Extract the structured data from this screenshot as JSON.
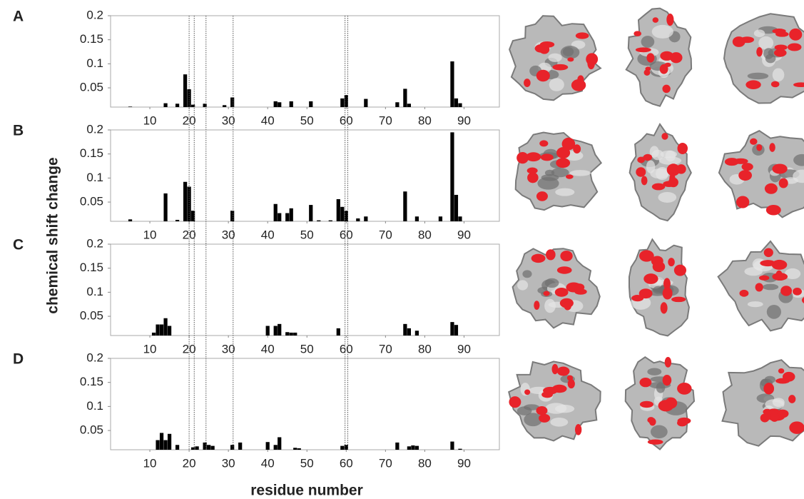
{
  "y_label": "chemical shift change",
  "x_label": "residue number",
  "marker_residues": [
    20,
    21.3,
    24.3,
    31.2,
    59.7,
    60.4
  ],
  "chart_data": [
    {
      "type": "bar",
      "panel_label": "A",
      "color": "#000000",
      "x": [
        5,
        14,
        17,
        19,
        20,
        21,
        24,
        29,
        31,
        42,
        43,
        46,
        51,
        59,
        60,
        65,
        73,
        75,
        76,
        87,
        88,
        89
      ],
      "values": [
        0.011,
        0.018,
        0.017,
        0.078,
        0.047,
        0.015,
        0.017,
        0.014,
        0.03,
        0.022,
        0.02,
        0.022,
        0.022,
        0.028,
        0.035,
        0.027,
        0.02,
        0.048,
        0.017,
        0.105,
        0.028,
        0.018
      ],
      "xlim": [
        0,
        99
      ],
      "ylim": [
        0.01,
        0.2
      ],
      "xticks": [
        10,
        20,
        30,
        40,
        50,
        60,
        70,
        80,
        90
      ],
      "yticks": [
        0.05,
        0.1,
        0.15,
        0.2
      ]
    },
    {
      "type": "bar",
      "panel_label": "B",
      "color": "#000000",
      "x": [
        5,
        14,
        17,
        19,
        20,
        21,
        31,
        42,
        43,
        45,
        46,
        51,
        53,
        56,
        58,
        59,
        60,
        63,
        65,
        75,
        78,
        84,
        87,
        88,
        89
      ],
      "values": [
        0.014,
        0.068,
        0.013,
        0.092,
        0.082,
        0.032,
        0.032,
        0.046,
        0.027,
        0.027,
        0.037,
        0.044,
        0.012,
        0.012,
        0.056,
        0.04,
        0.032,
        0.016,
        0.02,
        0.072,
        0.02,
        0.02,
        0.195,
        0.065,
        0.02
      ],
      "xlim": [
        0,
        99
      ],
      "ylim": [
        0.01,
        0.2
      ],
      "xticks": [
        10,
        20,
        30,
        40,
        50,
        60,
        70,
        80,
        90
      ],
      "yticks": [
        0.05,
        0.1,
        0.15,
        0.2
      ]
    },
    {
      "type": "bar",
      "panel_label": "C",
      "color": "#000000",
      "x": [
        11,
        12,
        13,
        14,
        15,
        40,
        42,
        43,
        45,
        46,
        47,
        58,
        75,
        76,
        78,
        87,
        88
      ],
      "values": [
        0.016,
        0.033,
        0.033,
        0.046,
        0.03,
        0.03,
        0.03,
        0.034,
        0.017,
        0.016,
        0.016,
        0.025,
        0.034,
        0.025,
        0.02,
        0.038,
        0.032
      ],
      "xlim": [
        0,
        99
      ],
      "ylim": [
        0.01,
        0.2
      ],
      "xticks": [
        10,
        20,
        30,
        40,
        50,
        60,
        70,
        80,
        90
      ],
      "yticks": [
        0.05,
        0.1,
        0.15,
        0.2
      ]
    },
    {
      "type": "bar",
      "panel_label": "D",
      "color": "#000000",
      "x": [
        12,
        13,
        14,
        15,
        17,
        21,
        22,
        24,
        25,
        26,
        31,
        33,
        40,
        42,
        43,
        47,
        48,
        59,
        60,
        73,
        76,
        77,
        78,
        87,
        89
      ],
      "values": [
        0.03,
        0.045,
        0.03,
        0.043,
        0.02,
        0.015,
        0.017,
        0.025,
        0.02,
        0.018,
        0.02,
        0.025,
        0.026,
        0.02,
        0.036,
        0.014,
        0.013,
        0.018,
        0.02,
        0.025,
        0.017,
        0.019,
        0.018,
        0.027,
        0.012
      ],
      "xlim": [
        0,
        99
      ],
      "ylim": [
        0.01,
        0.2
      ],
      "xticks": [
        10,
        20,
        30,
        40,
        50,
        60,
        70,
        80,
        90
      ],
      "yticks": [
        0.05,
        0.1,
        0.15,
        0.2
      ]
    }
  ]
}
